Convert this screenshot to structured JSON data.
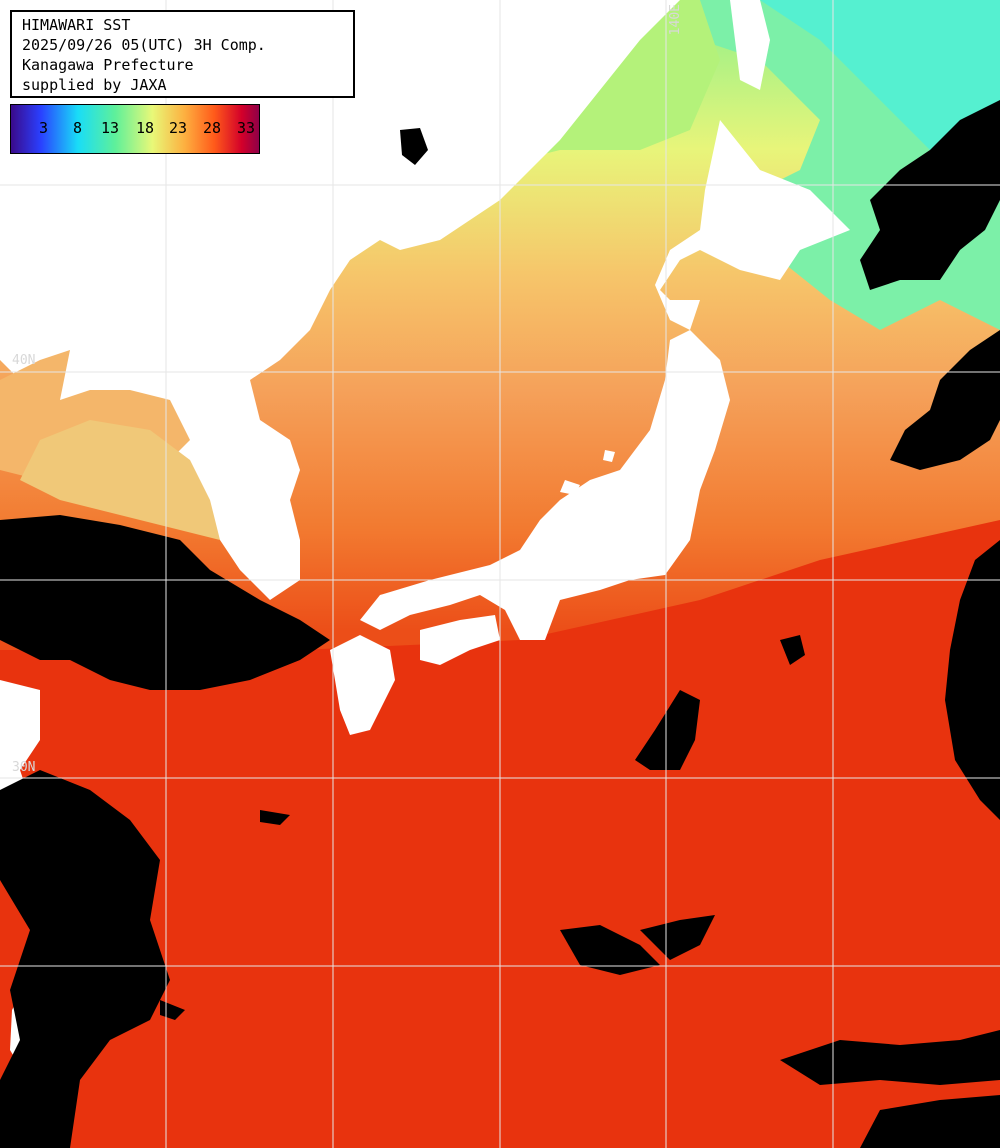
{
  "info": {
    "line1": "HIMAWARI SST",
    "line2": "2025/09/26 05(UTC) 3H Comp.",
    "line3": "Kanagawa Prefecture",
    "line4": "supplied by JAXA"
  },
  "colorbar": {
    "ticks": [
      "3",
      "8",
      "13",
      "18",
      "23",
      "28",
      "33"
    ],
    "stops": [
      "#3a0a8a",
      "#2a40ff",
      "#19ddf7",
      "#5ef09a",
      "#e8f878",
      "#fdb040",
      "#ff5a1a",
      "#d3002a",
      "#8f0048"
    ]
  },
  "graticule": {
    "lat_label": "40N",
    "lat_label_2": "30N",
    "lon_label": "140E"
  },
  "colors": {
    "warm_ocean": "#e8340f",
    "orange_ocean": "#f47a2c",
    "yellow_ocean": "#f2d072",
    "green_ocean": "#a8f07c",
    "cyan_ocean": "#5ff0c0",
    "land": "#ffffff",
    "cloud": "#000000",
    "grid": "#e6e6e6"
  }
}
